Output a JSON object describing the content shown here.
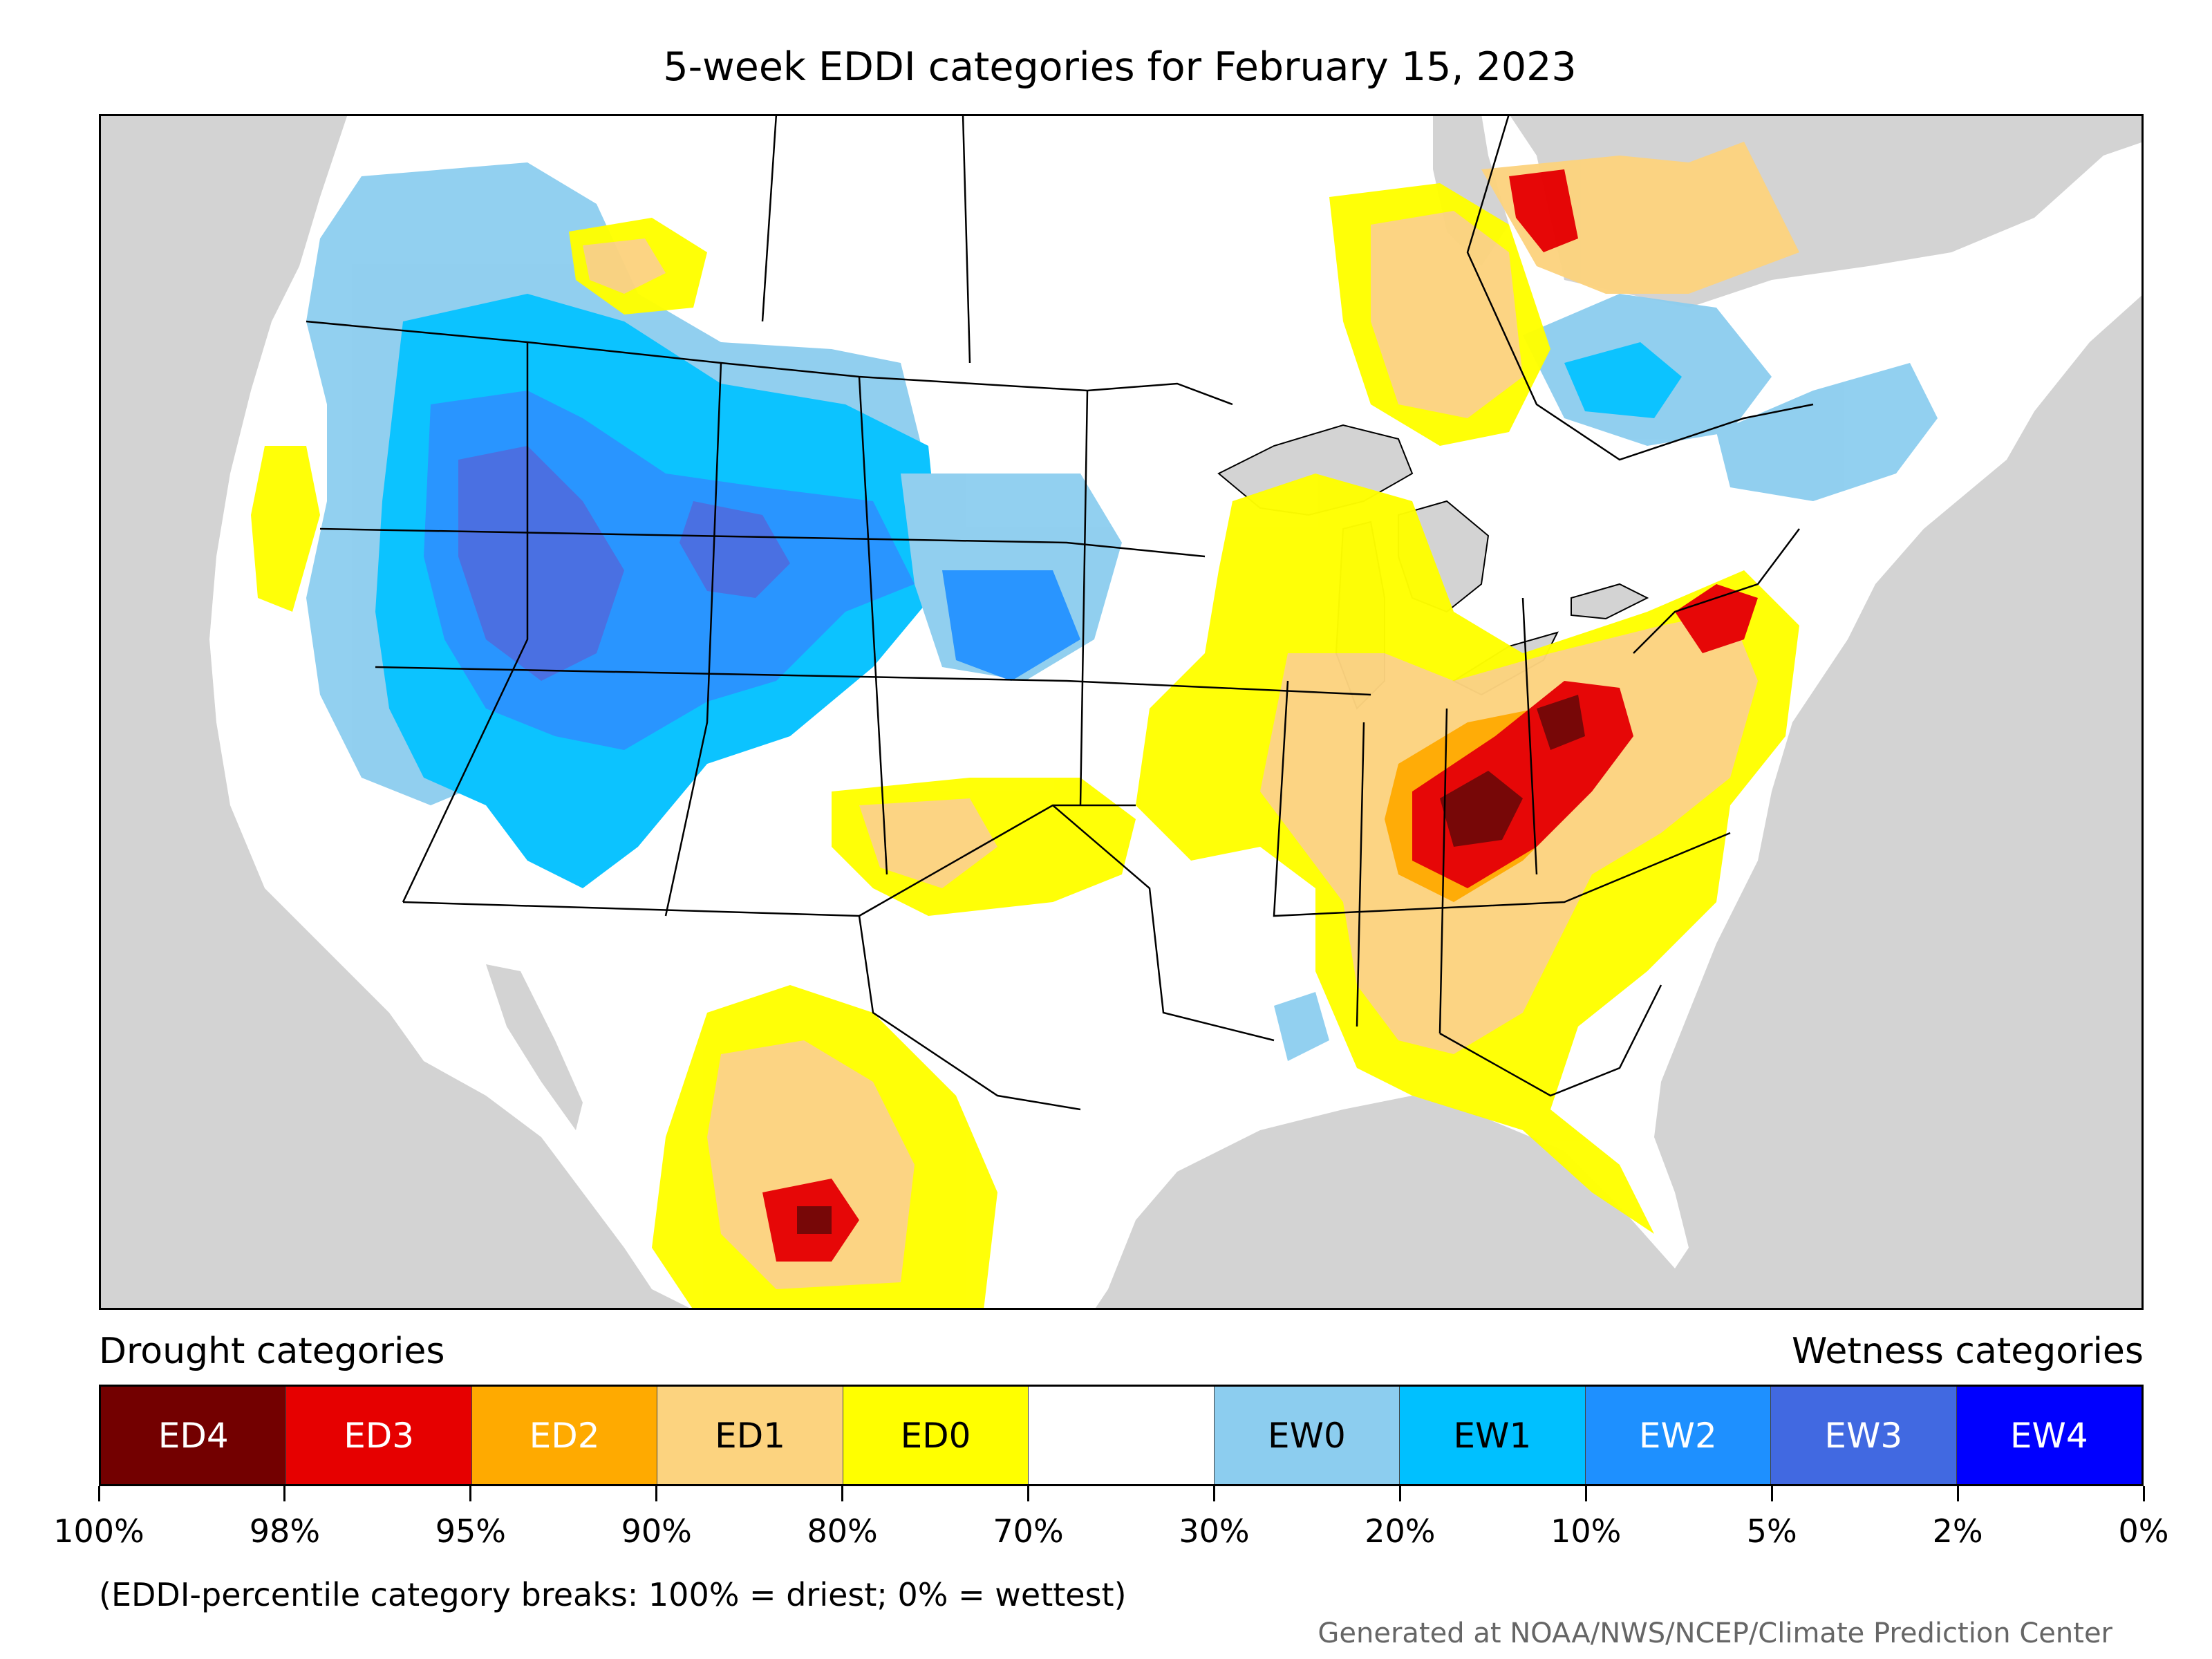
{
  "title": "5-week EDDI categories for February 15, 2023",
  "legend": {
    "drought_heading": "Drought categories",
    "wetness_heading": "Wetness categories",
    "categories": [
      {
        "label": "ED4",
        "color": "#730000",
        "text_color": "#ffffff"
      },
      {
        "label": "ED3",
        "color": "#e60000",
        "text_color": "#ffffff"
      },
      {
        "label": "ED2",
        "color": "#ffaa00",
        "text_color": "#ffffff"
      },
      {
        "label": "ED1",
        "color": "#fcd37f",
        "text_color": "#000000"
      },
      {
        "label": "ED0",
        "color": "#ffff00",
        "text_color": "#000000"
      },
      {
        "label": "",
        "color": "#ffffff",
        "text_color": "#000000"
      },
      {
        "label": "EW0",
        "color": "#8ccdef",
        "text_color": "#000000"
      },
      {
        "label": "EW1",
        "color": "#00c0ff",
        "text_color": "#000000"
      },
      {
        "label": "EW2",
        "color": "#1e90ff",
        "text_color": "#ffffff"
      },
      {
        "label": "EW3",
        "color": "#4169e1",
        "text_color": "#ffffff"
      },
      {
        "label": "EW4",
        "color": "#0000ff",
        "text_color": "#ffffff"
      }
    ],
    "ticks": [
      "100%",
      "98%",
      "95%",
      "90%",
      "80%",
      "70%",
      "30%",
      "20%",
      "10%",
      "5%",
      "2%",
      "0%"
    ]
  },
  "note": "(EDDI-percentile category breaks: 100% = driest; 0% = wettest)",
  "credit": "Generated at NOAA/NWS/NCEP/Climate Prediction Center",
  "map_colors": {
    "ocean": "#d3d3d3",
    "land": "#ffffff",
    "lakes": "#d3d3d3"
  }
}
